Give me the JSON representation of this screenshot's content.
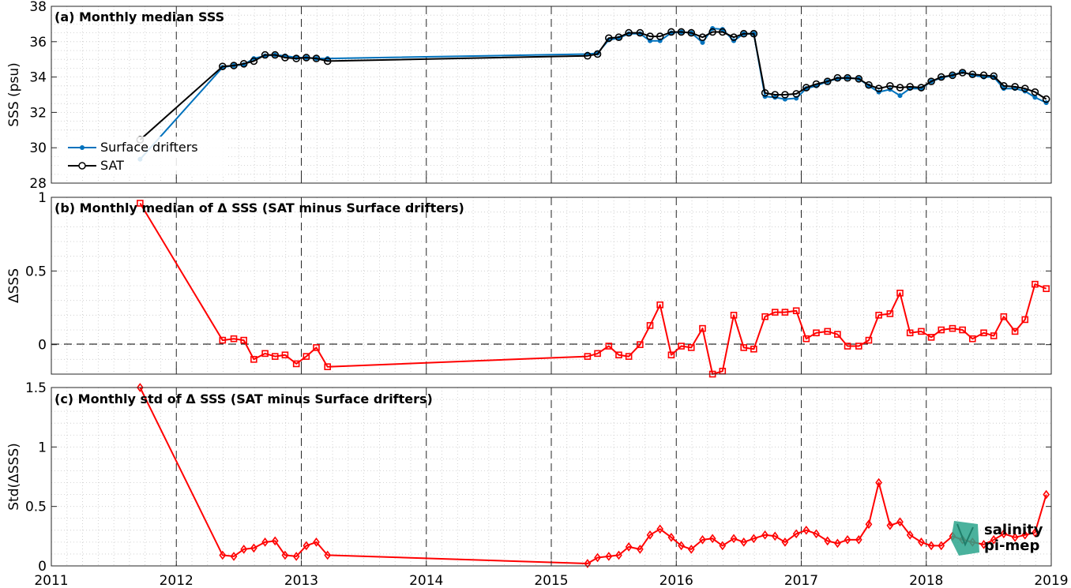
{
  "chart_data": [
    {
      "type": "line",
      "title": "(a) Monthly median SSS",
      "ylabel": "SSS (psu)",
      "xlim": [
        2011,
        2019
      ],
      "ylim": [
        28,
        38
      ],
      "yticks": [
        28,
        30,
        32,
        34,
        36,
        38
      ],
      "grid": true,
      "legend_position": "bottom-left",
      "series": [
        {
          "name": "Surface drifters",
          "color": "#0072bd",
          "marker": "dot",
          "x": [
            2011.71,
            2012.37,
            2012.46,
            2012.54,
            2012.62,
            2012.71,
            2012.79,
            2012.87,
            2012.96,
            2013.04,
            2013.12,
            2013.21,
            2015.29,
            2015.37,
            2015.46,
            2015.54,
            2015.62,
            2015.71,
            2015.79,
            2015.87,
            2015.96,
            2016.04,
            2016.12,
            2016.21,
            2016.29,
            2016.37,
            2016.46,
            2016.54,
            2016.62,
            2016.71,
            2016.79,
            2016.87,
            2016.96,
            2017.04,
            2017.12,
            2017.21,
            2017.29,
            2017.37,
            2017.46,
            2017.54,
            2017.62,
            2017.71,
            2017.79,
            2017.87,
            2017.96,
            2018.04,
            2018.12,
            2018.21,
            2018.29,
            2018.37,
            2018.46,
            2018.54,
            2018.62,
            2018.71,
            2018.79,
            2018.87,
            2018.96
          ],
          "y": [
            29.35,
            34.55,
            34.65,
            34.7,
            35.05,
            35.2,
            35.25,
            35.2,
            35.1,
            35.1,
            35.05,
            35.05,
            35.3,
            35.35,
            36.1,
            36.2,
            36.45,
            36.45,
            36.05,
            36.05,
            36.5,
            36.55,
            36.5,
            35.95,
            36.75,
            36.7,
            36.05,
            36.45,
            36.45,
            32.9,
            32.85,
            32.75,
            32.8,
            33.35,
            33.5,
            33.75,
            33.9,
            33.95,
            33.9,
            33.5,
            33.15,
            33.3,
            32.95,
            33.35,
            33.35,
            33.75,
            33.95,
            34.1,
            34.3,
            34.1,
            34.0,
            34.0,
            33.35,
            33.35,
            33.2,
            32.85,
            32.55
          ]
        },
        {
          "name": "SAT",
          "color": "#000000",
          "marker": "circle",
          "x": [
            2011.71,
            2012.37,
            2012.46,
            2012.54,
            2012.62,
            2012.71,
            2012.79,
            2012.87,
            2012.96,
            2013.04,
            2013.12,
            2013.21,
            2015.29,
            2015.37,
            2015.46,
            2015.54,
            2015.62,
            2015.71,
            2015.79,
            2015.87,
            2015.96,
            2016.04,
            2016.12,
            2016.21,
            2016.29,
            2016.37,
            2016.46,
            2016.54,
            2016.62,
            2016.71,
            2016.79,
            2016.87,
            2016.96,
            2017.04,
            2017.12,
            2017.21,
            2017.29,
            2017.37,
            2017.46,
            2017.54,
            2017.62,
            2017.71,
            2017.79,
            2017.87,
            2017.96,
            2018.04,
            2018.12,
            2018.21,
            2018.29,
            2018.37,
            2018.46,
            2018.54,
            2018.62,
            2018.71,
            2018.79,
            2018.87,
            2018.96
          ],
          "y": [
            30.45,
            34.6,
            34.65,
            34.75,
            34.9,
            35.25,
            35.25,
            35.1,
            35.05,
            35.1,
            35.05,
            34.9,
            35.2,
            35.3,
            36.2,
            36.25,
            36.5,
            36.5,
            36.3,
            36.3,
            36.55,
            36.55,
            36.5,
            36.25,
            36.55,
            36.55,
            36.25,
            36.45,
            36.45,
            33.1,
            33.0,
            33.0,
            33.05,
            33.4,
            33.6,
            33.75,
            33.95,
            33.95,
            33.9,
            33.55,
            33.35,
            33.5,
            33.4,
            33.45,
            33.4,
            33.75,
            34.0,
            34.1,
            34.25,
            34.15,
            34.1,
            34.05,
            33.5,
            33.45,
            33.35,
            33.15,
            32.75
          ]
        }
      ]
    },
    {
      "type": "line",
      "title": "(b) Monthly median of Δ SSS (SAT minus Surface drifters)",
      "ylabel": "ΔSSS",
      "xlim": [
        2011,
        2019
      ],
      "ylim": [
        -0.2,
        1
      ],
      "yticks": [
        0,
        0.5,
        1
      ],
      "grid": true,
      "zero_line": true,
      "series": [
        {
          "color": "#ff0000",
          "marker": "square",
          "x": [
            2011.71,
            2012.37,
            2012.46,
            2012.54,
            2012.62,
            2012.71,
            2012.79,
            2012.87,
            2012.96,
            2013.04,
            2013.12,
            2013.21,
            2015.29,
            2015.37,
            2015.46,
            2015.54,
            2015.62,
            2015.71,
            2015.79,
            2015.87,
            2015.96,
            2016.04,
            2016.12,
            2016.21,
            2016.29,
            2016.37,
            2016.46,
            2016.54,
            2016.62,
            2016.71,
            2016.79,
            2016.87,
            2016.96,
            2017.04,
            2017.12,
            2017.21,
            2017.29,
            2017.37,
            2017.46,
            2017.54,
            2017.62,
            2017.71,
            2017.79,
            2017.87,
            2017.96,
            2018.04,
            2018.12,
            2018.21,
            2018.29,
            2018.37,
            2018.46,
            2018.54,
            2018.62,
            2018.71,
            2018.79,
            2018.87,
            2018.96
          ],
          "y": [
            0.96,
            0.03,
            0.04,
            0.03,
            -0.1,
            -0.06,
            -0.08,
            -0.07,
            -0.13,
            -0.08,
            -0.02,
            -0.15,
            -0.08,
            -0.06,
            -0.01,
            -0.07,
            -0.08,
            0.0,
            0.13,
            0.27,
            -0.07,
            -0.01,
            -0.02,
            0.11,
            -0.2,
            -0.18,
            0.2,
            -0.02,
            -0.03,
            0.19,
            0.22,
            0.22,
            0.23,
            0.04,
            0.08,
            0.09,
            0.07,
            -0.01,
            -0.01,
            0.03,
            0.2,
            0.21,
            0.35,
            0.08,
            0.09,
            0.05,
            0.1,
            0.11,
            0.1,
            0.04,
            0.08,
            0.06,
            0.19,
            0.09,
            0.17,
            0.41,
            0.38
          ]
        }
      ]
    },
    {
      "type": "line",
      "title": "(c) Monthly std of Δ SSS (SAT minus Surface drifters)",
      "ylabel": "Std(ΔSSS)",
      "xlim": [
        2011,
        2019
      ],
      "ylim": [
        0,
        1.5
      ],
      "yticks": [
        0,
        0.5,
        1,
        1.5
      ],
      "xticks": [
        2011,
        2012,
        2013,
        2014,
        2015,
        2016,
        2017,
        2018,
        2019
      ],
      "grid": true,
      "series": [
        {
          "color": "#ff0000",
          "marker": "diamond",
          "x": [
            2011.71,
            2012.37,
            2012.46,
            2012.54,
            2012.62,
            2012.71,
            2012.79,
            2012.87,
            2012.96,
            2013.04,
            2013.12,
            2013.21,
            2015.29,
            2015.37,
            2015.46,
            2015.54,
            2015.62,
            2015.71,
            2015.79,
            2015.87,
            2015.96,
            2016.04,
            2016.12,
            2016.21,
            2016.29,
            2016.37,
            2016.46,
            2016.54,
            2016.62,
            2016.71,
            2016.79,
            2016.87,
            2016.96,
            2017.04,
            2017.12,
            2017.21,
            2017.29,
            2017.37,
            2017.46,
            2017.54,
            2017.62,
            2017.71,
            2017.79,
            2017.87,
            2017.96,
            2018.04,
            2018.12,
            2018.21,
            2018.29,
            2018.37,
            2018.46,
            2018.54,
            2018.62,
            2018.71,
            2018.79,
            2018.87,
            2018.96
          ],
          "y": [
            1.5,
            0.09,
            0.08,
            0.14,
            0.15,
            0.2,
            0.21,
            0.09,
            0.08,
            0.17,
            0.2,
            0.09,
            0.02,
            0.07,
            0.08,
            0.09,
            0.16,
            0.14,
            0.26,
            0.31,
            0.24,
            0.17,
            0.14,
            0.22,
            0.23,
            0.17,
            0.23,
            0.2,
            0.23,
            0.26,
            0.25,
            0.2,
            0.27,
            0.3,
            0.27,
            0.21,
            0.19,
            0.22,
            0.22,
            0.35,
            0.7,
            0.34,
            0.37,
            0.26,
            0.2,
            0.17,
            0.17,
            0.25,
            0.22,
            0.2,
            0.18,
            0.22,
            0.27,
            0.24,
            0.26,
            0.28,
            0.6
          ]
        }
      ]
    }
  ],
  "logo": {
    "line1": "salinity",
    "line2": "pi-mep",
    "color": "#2aa58c"
  }
}
